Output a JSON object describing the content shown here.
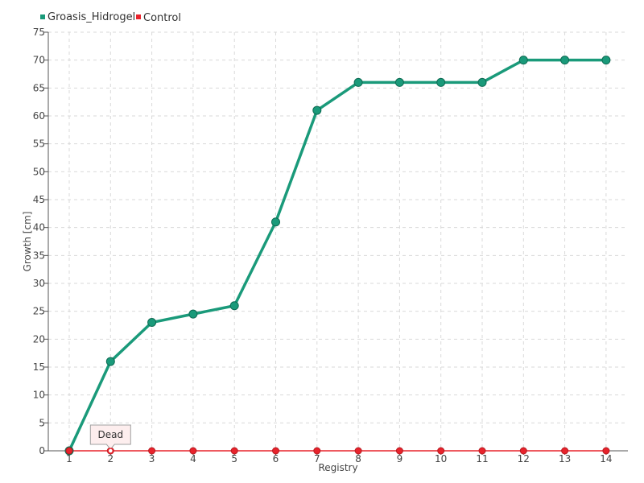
{
  "chart_data": {
    "type": "line",
    "xlabel": "Registry",
    "ylabel": "Growth [cm]",
    "categories": [
      "1",
      "2",
      "3",
      "4",
      "5",
      "6",
      "7",
      "8",
      "9",
      "10",
      "11",
      "12",
      "13",
      "14"
    ],
    "ylim": [
      0,
      75
    ],
    "yticks": [
      0,
      5,
      10,
      15,
      20,
      25,
      30,
      35,
      40,
      45,
      50,
      55,
      60,
      65,
      70,
      75
    ],
    "grid": true,
    "legend_position": "top-left",
    "series": [
      {
        "name": "Groasis_Hidrogel",
        "color": "#1a9a7a",
        "values": [
          0,
          16,
          23,
          24.5,
          26,
          41,
          61,
          66,
          66,
          66,
          66,
          70,
          70,
          70
        ]
      },
      {
        "name": "Control",
        "color": "#e8232c",
        "values": [
          0,
          0,
          0,
          0,
          0,
          0,
          0,
          0,
          0,
          0,
          0,
          0,
          0,
          0
        ]
      }
    ],
    "annotations": [
      {
        "text": "Dead",
        "series": "Control",
        "x": "2",
        "y": 0
      }
    ]
  }
}
